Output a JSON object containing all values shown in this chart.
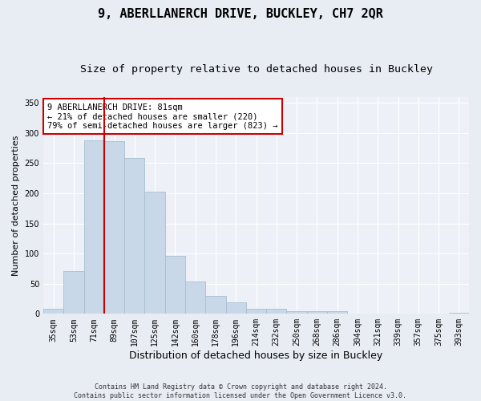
{
  "title1": "9, ABERLLANERCH DRIVE, BUCKLEY, CH7 2QR",
  "title2": "Size of property relative to detached houses in Buckley",
  "xlabel": "Distribution of detached houses by size in Buckley",
  "ylabel": "Number of detached properties",
  "footnote": "Contains HM Land Registry data © Crown copyright and database right 2024.\nContains public sector information licensed under the Open Government Licence v3.0.",
  "categories": [
    "35sqm",
    "53sqm",
    "71sqm",
    "89sqm",
    "107sqm",
    "125sqm",
    "142sqm",
    "160sqm",
    "178sqm",
    "196sqm",
    "214sqm",
    "232sqm",
    "250sqm",
    "268sqm",
    "286sqm",
    "304sqm",
    "321sqm",
    "339sqm",
    "357sqm",
    "375sqm",
    "393sqm"
  ],
  "values": [
    9,
    71,
    287,
    286,
    259,
    203,
    96,
    53,
    30,
    19,
    9,
    9,
    5,
    5,
    4,
    0,
    0,
    0,
    0,
    0,
    2
  ],
  "bar_color": "#c8d8e8",
  "bar_edgecolor": "#a8bece",
  "vline_x": 2.5,
  "vline_color": "#cc0000",
  "annotation_text": "9 ABERLLANERCH DRIVE: 81sqm\n← 21% of detached houses are smaller (220)\n79% of semi-detached houses are larger (823) →",
  "annotation_box_color": "#ffffff",
  "annotation_box_edgecolor": "#cc0000",
  "ylim": [
    0,
    360
  ],
  "yticks": [
    0,
    50,
    100,
    150,
    200,
    250,
    300,
    350
  ],
  "bg_color": "#e8edf4",
  "plot_bg_color": "#edf1f7",
  "grid_color": "#ffffff",
  "title1_fontsize": 11,
  "title2_fontsize": 9.5,
  "xlabel_fontsize": 9,
  "ylabel_fontsize": 8,
  "tick_fontsize": 7,
  "annot_fontsize": 7.5
}
